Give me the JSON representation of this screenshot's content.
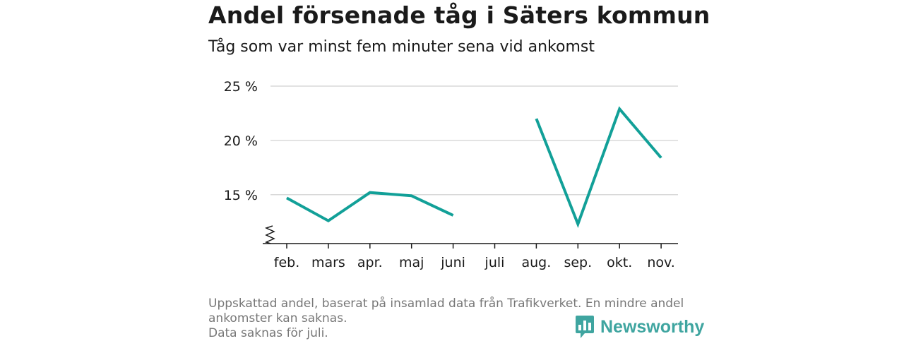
{
  "title": "Andel försenade tåg i Säters kommun",
  "subtitle": "Tåg som var minst fem minuter sena vid ankomst",
  "chart_data": {
    "type": "line",
    "categories": [
      "feb.",
      "mars",
      "apr.",
      "maj",
      "juni",
      "juli",
      "aug.",
      "sep.",
      "okt.",
      "nov."
    ],
    "series": [
      {
        "values": [
          14.7,
          12.6,
          15.2,
          14.9,
          13.1,
          null,
          22.0,
          12.3,
          22.9,
          18.4
        ]
      }
    ],
    "y_ticks": [
      15,
      20,
      25
    ],
    "y_tick_labels": [
      "15 %",
      "20 %",
      "25 %"
    ],
    "ylim": [
      10.5,
      25
    ],
    "y_axis_break": true,
    "grid": true,
    "color": "#12a098"
  },
  "footnote": {
    "line1": "Uppskattad andel, baserat på insamlad data från Trafikverket. En mindre andel",
    "line2": "ankomster kan saknas.",
    "line3": "Data saknas för juli."
  },
  "brand": {
    "name": "Newsworthy",
    "color": "#3fa5a0",
    "icon": "bar-chart-speech-bubble-icon"
  }
}
